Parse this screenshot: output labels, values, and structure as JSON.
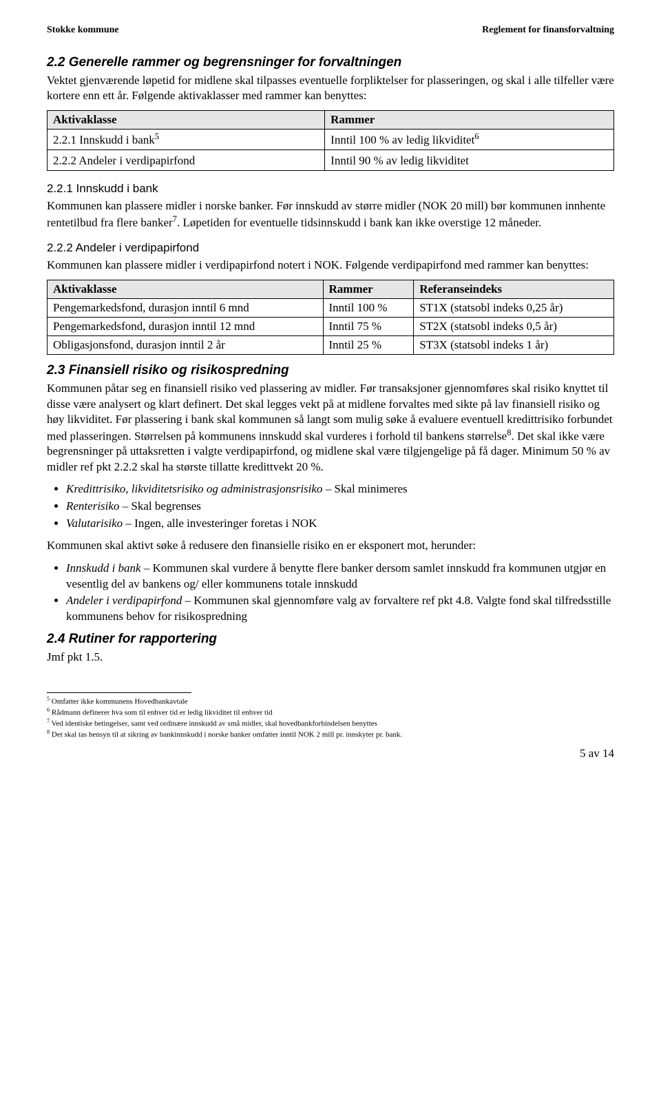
{
  "header": {
    "left": "Stokke kommune",
    "right": "Reglement for finansforvaltning"
  },
  "s2_2": {
    "title": "2.2   Generelle rammer og begrensninger for forvaltningen",
    "para": "Vektet gjenværende løpetid for midlene skal tilpasses eventuelle forpliktelser for plasseringen, og skal i alle tilfeller være kortere enn ett år. Følgende aktivaklasser med rammer kan benyttes:"
  },
  "table1": {
    "headers": [
      "Aktivaklasse",
      "Rammer"
    ],
    "rows": [
      {
        "c0_pre": "2.2.1   Innskudd i bank",
        "c0_sup": "5",
        "c1_pre": "Inntil 100 % av ledig likviditet",
        "c1_sup": "6"
      },
      {
        "c0_pre": "2.2.2   Andeler i verdipapirfond",
        "c0_sup": "",
        "c1_pre": "Inntil 90 % av ledig likviditet",
        "c1_sup": ""
      }
    ]
  },
  "s2_2_1": {
    "title": "2.2.1   Innskudd i bank",
    "para_a": "Kommunen kan plassere midler i norske banker. Før innskudd av større midler (NOK 20 mill) bør kommunen innhente rentetilbud fra flere banker",
    "para_a_sup": "7",
    "para_b": ". Løpetiden for eventuelle tidsinnskudd i bank kan ikke overstige 12 måneder."
  },
  "s2_2_2": {
    "title": "2.2.2   Andeler i verdipapirfond",
    "para": "Kommunen kan plassere midler i verdipapirfond notert i NOK. Følgende verdipapirfond med rammer kan benyttes:"
  },
  "table2": {
    "headers": [
      "Aktivaklasse",
      "Rammer",
      "Referanseindeks"
    ],
    "rows": [
      [
        "Pengemarkedsfond, durasjon inntil 6 mnd",
        "Inntil 100 %",
        "ST1X (statsobl indeks 0,25 år)"
      ],
      [
        "Pengemarkedsfond, durasjon inntil 12 mnd",
        "Inntil 75 %",
        "ST2X (statsobl indeks 0,5 år)"
      ],
      [
        "Obligasjonsfond, durasjon inntil 2 år",
        "Inntil 25 %",
        "ST3X (statsobl indeks 1 år)"
      ]
    ]
  },
  "s2_3": {
    "title": "2.3   Finansiell risiko og risikospredning",
    "para_a": "Kommunen påtar seg en finansiell risiko ved plassering av midler. Før transaksjoner gjennomføres skal risiko knyttet til disse være analysert og klart definert. Det skal legges vekt på at midlene forvaltes med sikte på lav finansiell risiko og høy likviditet. Før plassering i bank skal kommunen så langt som mulig søke å evaluere eventuell kredittrisiko forbundet med plasseringen. Størrelsen på kommunens innskudd skal vurderes i forhold til bankens størrelse",
    "para_a_sup": "8",
    "para_b": ". Det skal ikke være begrensninger på uttaksretten i valgte verdipapirfond, og midlene skal være tilgjengelige på få dager. Minimum 50 % av midler ref pkt 2.2.2 skal ha største tillatte kredittvekt 20 %."
  },
  "risk_bullets": [
    {
      "italic": "Kredittrisiko, likviditetsrisiko og administrasjonsrisiko",
      "rest": " – Skal minimeres"
    },
    {
      "italic": "Renterisiko",
      "rest": " – Skal begrenses"
    },
    {
      "italic": "Valutarisiko",
      "rest": " – Ingen, alle investeringer foretas i NOK"
    }
  ],
  "s2_3_mid": "Kommunen skal aktivt søke å redusere den finansielle risiko en er eksponert mot, herunder:",
  "action_bullets": [
    {
      "italic": "Innskudd i bank",
      "rest": " – Kommunen skal vurdere å benytte flere banker dersom samlet innskudd fra kommunen utgjør en vesentlig del av bankens og/ eller kommunens totale innskudd"
    },
    {
      "italic": "Andeler i verdipapirfond",
      "rest": " – Kommunen skal gjennomføre valg av forvaltere ref pkt 4.8. Valgte fond skal tilfredsstille kommunens behov for risikospredning"
    }
  ],
  "s2_4": {
    "title": "2.4   Rutiner for rapportering",
    "para": "Jmf pkt 1.5."
  },
  "footnotes": [
    {
      "num": "5",
      "text": " Omfatter ikke kommunens Hovedbankavtale"
    },
    {
      "num": "6",
      "text": " Rådmann definerer hva som til enhver tid er ledig likviditet til enhver tid"
    },
    {
      "num": "7",
      "text": " Ved identiske betingelser, samt ved ordinære innskudd av små midler, skal hovedbankforbindelsen benyttes"
    },
    {
      "num": "8",
      "text": " Det skal tas hensyn til at sikring av bankinnskudd i norske banker omfatter inntil NOK 2 mill pr. innskyter pr. bank."
    }
  ],
  "pagenum": "5 av 14"
}
